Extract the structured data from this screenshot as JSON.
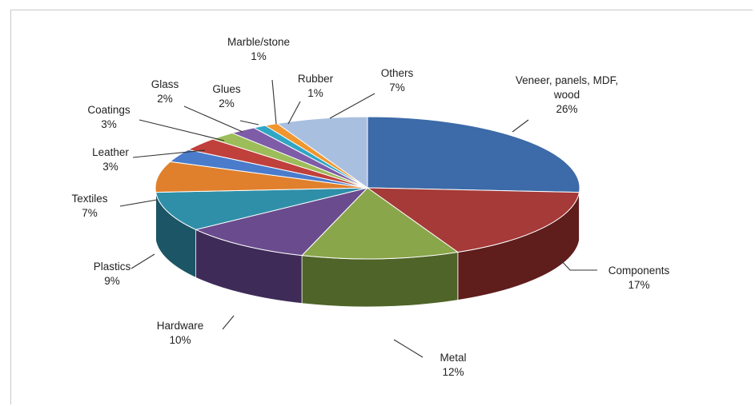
{
  "chart_data": {
    "type": "pie",
    "title": "",
    "legend": "none",
    "slices": [
      {
        "label_lines": [
          "Veneer, panels,  MDF,",
          "wood"
        ],
        "value": 26,
        "value_text": "26%",
        "color": "#3d6aa8",
        "side": "#26466f"
      },
      {
        "label_lines": [
          "Components"
        ],
        "value": 17,
        "value_text": "17%",
        "color": "#a53a38",
        "side": "#5f1d1c"
      },
      {
        "label_lines": [
          "Metal"
        ],
        "value": 12,
        "value_text": "12%",
        "color": "#8aa64a",
        "side": "#4f6428"
      },
      {
        "label_lines": [
          "Hardware"
        ],
        "value": 10,
        "value_text": "10%",
        "color": "#6a4c8e",
        "side": "#3f2b58"
      },
      {
        "label_lines": [
          "Plastics"
        ],
        "value": 9,
        "value_text": "9%",
        "color": "#2f8fa8",
        "side": "#1c5666"
      },
      {
        "label_lines": [
          "Textiles"
        ],
        "value": 7,
        "value_text": "7%",
        "color": "#e0802c",
        "side": "#8c4d18"
      },
      {
        "label_lines": [
          "Leather"
        ],
        "value": 3,
        "value_text": "3%",
        "color": "#4a7ccb",
        "side": "#2c4a7a"
      },
      {
        "label_lines": [
          "Coatings"
        ],
        "value": 3,
        "value_text": "3%",
        "color": "#c0403c",
        "side": "#6e2422"
      },
      {
        "label_lines": [
          "Glass"
        ],
        "value": 2,
        "value_text": "2%",
        "color": "#9dbd5a",
        "side": "#5e7234"
      },
      {
        "label_lines": [
          "Glues"
        ],
        "value": 2,
        "value_text": "2%",
        "color": "#7e5ca8",
        "side": "#4a3564"
      },
      {
        "label_lines": [
          "Marble/stone"
        ],
        "value": 1,
        "value_text": "1%",
        "color": "#2fa6c4",
        "side": "#1c6476"
      },
      {
        "label_lines": [
          "Rubber"
        ],
        "value": 1,
        "value_text": "1%",
        "color": "#f0962e",
        "side": "#8e581a"
      },
      {
        "label_lines": [
          "Others"
        ],
        "value": 7,
        "value_text": "7%",
        "color": "#a9bfe0",
        "side": "#6e7f98"
      }
    ]
  }
}
